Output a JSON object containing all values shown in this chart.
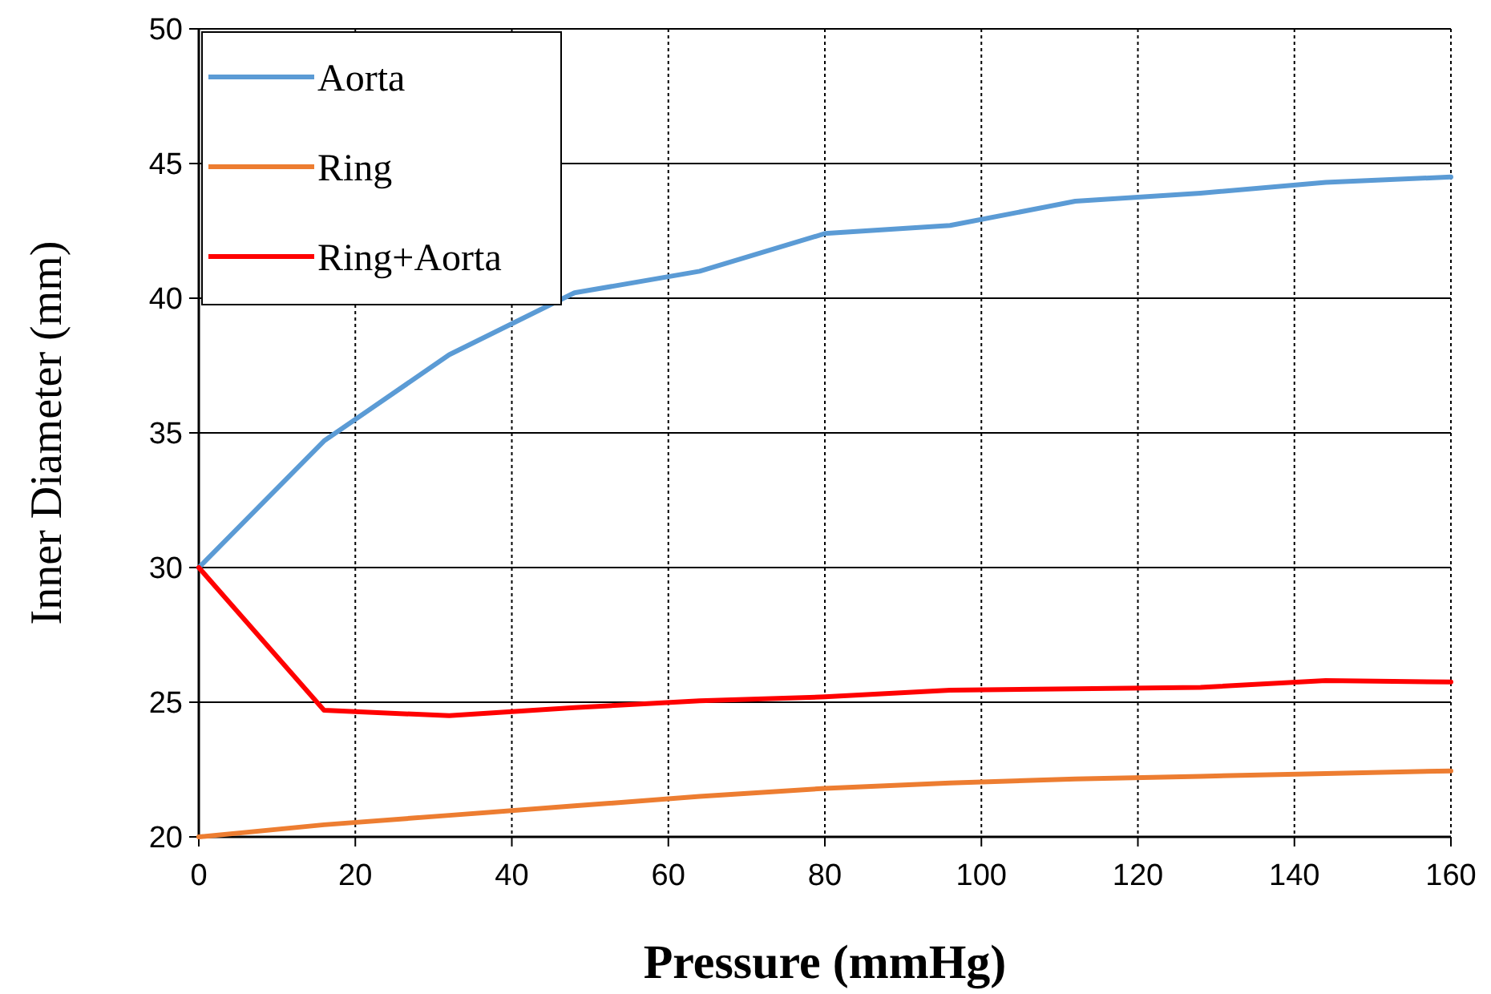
{
  "chart_data": {
    "type": "line",
    "xlabel": "Pressure  (mmHg)",
    "ylabel": "Inner Diameter (mm)",
    "x": [
      0,
      16,
      32,
      48,
      64,
      80,
      96,
      112,
      128,
      144,
      160
    ],
    "series": [
      {
        "name": "Aorta",
        "color": "#5b9bd5",
        "values": [
          30,
          34.7,
          37.9,
          40.2,
          41.0,
          42.4,
          42.7,
          43.6,
          43.9,
          44.3,
          44.5
        ]
      },
      {
        "name": "Ring",
        "color": "#ed7d31",
        "values": [
          20,
          20.45,
          20.8,
          21.15,
          21.5,
          21.8,
          22.0,
          22.15,
          22.25,
          22.35,
          22.45
        ]
      },
      {
        "name": "Ring+Aorta",
        "color": "#ff0000",
        "values": [
          30,
          24.7,
          24.5,
          24.8,
          25.05,
          25.2,
          25.45,
          25.5,
          25.55,
          25.8,
          25.75
        ]
      }
    ],
    "xlim": [
      0,
      160
    ],
    "xticks": [
      0,
      20,
      40,
      60,
      80,
      100,
      120,
      140,
      160
    ],
    "ylim": [
      20,
      50
    ],
    "yticks": [
      20,
      25,
      30,
      35,
      40,
      45,
      50
    ],
    "grid": true,
    "legend": "top left",
    "marker": "none",
    "line_style": "solid"
  }
}
